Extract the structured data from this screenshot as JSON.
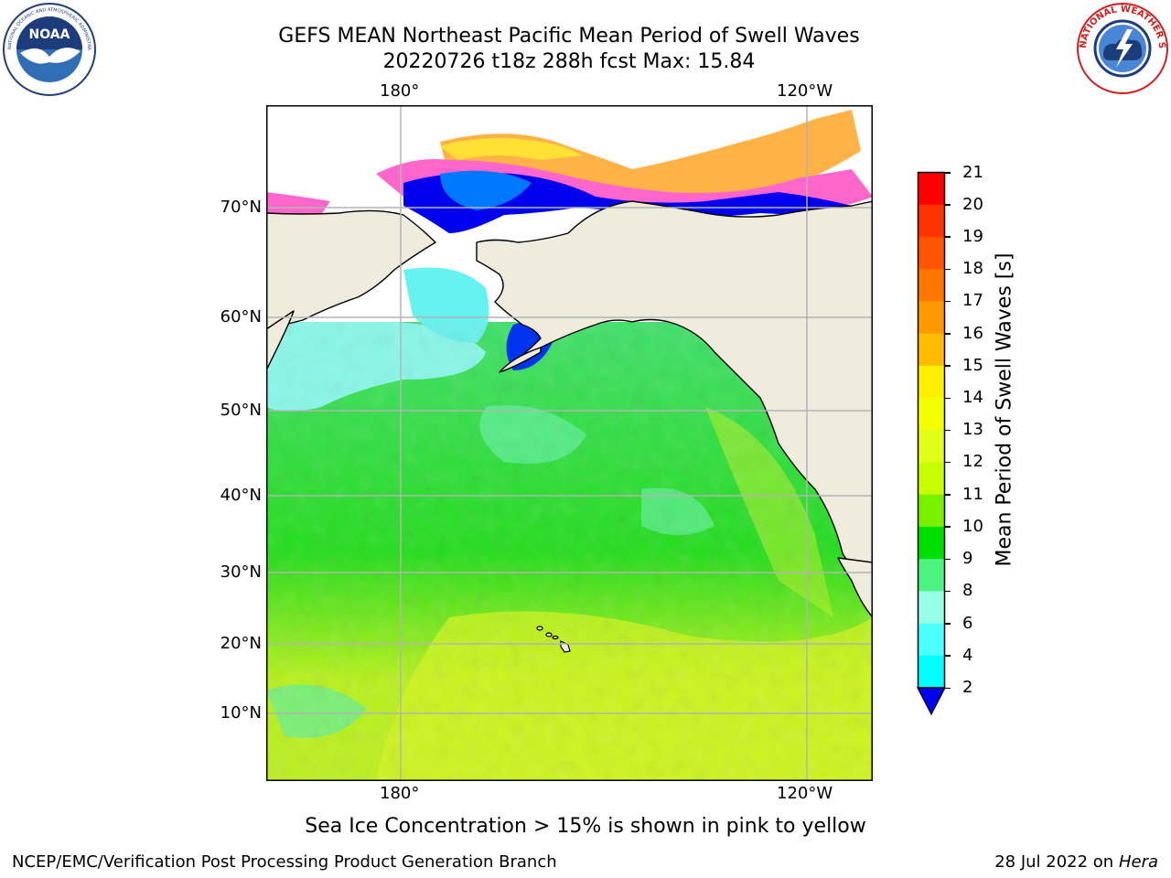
{
  "header": {
    "title_line1": "GEFS MEAN Northeast Pacific Mean Period of Swell Waves",
    "title_line2": "20220726 t18z 288h fcst   Max: 15.84"
  },
  "logos": {
    "noaa_text": "NOAA",
    "noaa_ring_text": "NATIONAL OCEANIC AND ATMOSPHERIC ADMINISTRATION · U.S. DEPARTMENT OF COMMERCE",
    "nws_ring_text": "NATIONAL WEATHER SERVICE"
  },
  "map": {
    "lon_labels_top": [
      "180°",
      "120°W"
    ],
    "lon_labels_bottom": [
      "180°",
      "120°W"
    ],
    "lat_labels": [
      "70°N",
      "60°N",
      "50°N",
      "40°N",
      "30°N",
      "20°N",
      "10°N"
    ],
    "colors": {
      "land": "#efecdd",
      "ice_pink": "#ff66cc",
      "ice_orange": "#ffb347",
      "ice_yellow": "#ffe135"
    }
  },
  "colorbar": {
    "label": "Mean Period of Swell Waves [s]",
    "ticks": [
      "21",
      "20",
      "19",
      "18",
      "17",
      "16",
      "15",
      "14",
      "13",
      "12",
      "11",
      "10",
      "9",
      "8",
      "6",
      "4",
      "2"
    ],
    "colors": [
      "#ff0000",
      "#ff3300",
      "#ff5500",
      "#ff7700",
      "#ff9900",
      "#ffbb00",
      "#ffee00",
      "#f4ff00",
      "#e2ff19",
      "#c8ff00",
      "#78f000",
      "#00e000",
      "#4df27f",
      "#99ffe6",
      "#4dffff",
      "#00ffff",
      "#00ddff",
      "#0077ff"
    ],
    "under_color": "#0000ee"
  },
  "note": "Sea Ice Concentration > 15% is shown in pink to yellow",
  "footer": {
    "left": "NCEP/EMC/Verification Post Processing Product Generation Branch",
    "right_date": "28 Jul 2022 on",
    "right_host": "Hera"
  }
}
